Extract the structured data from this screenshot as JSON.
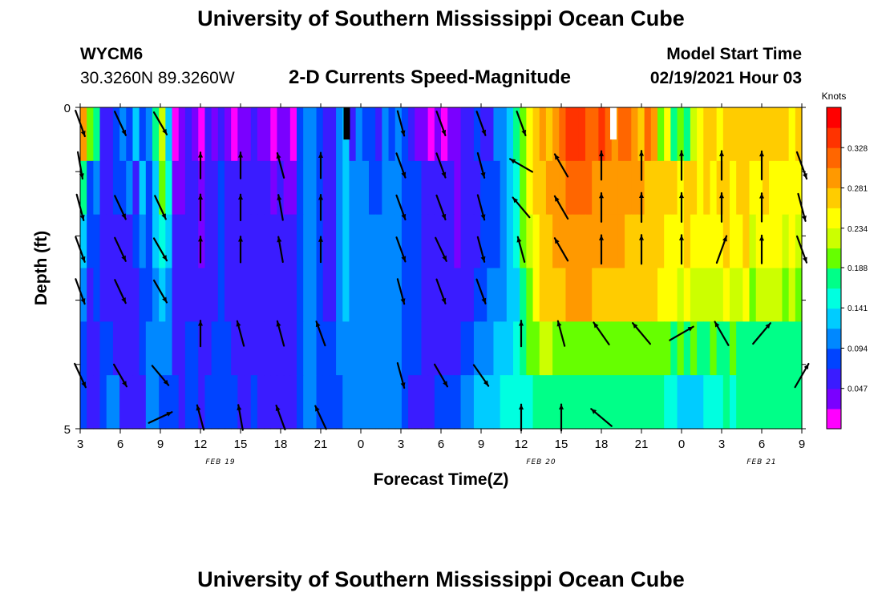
{
  "header": {
    "title": "University of Southern Mississippi Ocean Cube",
    "station": "WYCM6",
    "coords": "30.3260N 89.3260W",
    "subtitle": "2-D Currents Speed-Magnitude",
    "model_start_label": "Model Start Time",
    "model_start_value": "02/19/2021 Hour 03"
  },
  "footer": {
    "title": "University of Southern Mississippi Ocean Cube"
  },
  "colors": {
    "colormap": [
      "#ff00ff",
      "#7a00ff",
      "#3a1cff",
      "#0044ff",
      "#0088ff",
      "#00ccff",
      "#00ffe0",
      "#00ff88",
      "#66ff00",
      "#ccff00",
      "#ffff00",
      "#ffcc00",
      "#ff9900",
      "#ff6600",
      "#ff3300",
      "#ff0000"
    ],
    "arrow": "#000000",
    "background": "#ffffff"
  },
  "chart_data": {
    "type": "heatmap",
    "title": "2-D Currents Speed-Magnitude",
    "xlabel": "Forecast Time(Z)",
    "ylabel": "Depth (ft)",
    "x_ticks": [
      "3",
      "6",
      "9",
      "12",
      "15",
      "18",
      "21",
      "0",
      "3",
      "6",
      "9",
      "12",
      "15",
      "18",
      "21",
      "0",
      "3",
      "6",
      "9"
    ],
    "date_labels": [
      {
        "label": "FEB 19",
        "at_tick": 3.5
      },
      {
        "label": "FEB 20",
        "at_tick": 11.5
      },
      {
        "label": "FEB 21",
        "at_tick": 17
      }
    ],
    "y_ticks": [
      "0",
      "5"
    ],
    "ylim": [
      0,
      5
    ],
    "colorbar": {
      "label": "Knots",
      "ticks": [
        "0.047",
        "0.094",
        "0.141",
        "0.188",
        "0.234",
        "0.281",
        "0.328"
      ],
      "range": [
        0,
        0.375
      ]
    },
    "speed_at_depth_rows": [
      [
        0.29,
        0.21,
        0.17,
        0.07,
        0.06,
        0.09,
        0.1,
        0.08,
        0.13,
        0.08,
        0.1,
        0.17,
        0.22,
        0.12,
        0.01,
        0.03,
        0.06,
        0.04,
        0.02,
        0.05,
        0.04,
        0.06,
        0.03,
        0.02,
        0.04,
        0.03,
        0.07,
        0.04,
        0.03,
        0.02,
        0.03,
        0.03,
        0.02,
        0.09,
        0.11,
        0.1,
        0.08,
        0.06,
        0.07,
        0.1,
        0.14,
        0.07,
        0.11,
        0.09,
        0.08,
        0.07,
        0.1,
        0.09,
        0.1,
        0.08,
        0.05,
        0.04,
        0.03,
        0.02,
        0.03,
        0.01,
        0.03,
        0.04,
        0.06,
        0.05,
        0.08,
        0.06,
        0.07,
        0.1,
        0.11,
        0.14,
        0.17,
        0.2,
        0.24,
        0.26,
        0.29,
        0.28,
        0.29,
        0.32,
        0.33,
        0.34,
        0.34,
        0.32,
        0.32,
        0.33,
        0.32,
        0.3,
        0.31,
        0.32,
        0.3,
        0.28,
        0.31,
        0.29,
        0.2,
        0.24,
        0.18,
        0.2,
        0.18,
        0.22,
        0.25,
        0.27,
        0.26,
        0.25,
        0.26,
        0.26,
        0.27,
        0.26,
        0.27,
        0.26,
        0.26,
        0.27,
        0.26,
        0.26,
        0.25,
        0.26
      ],
      [
        0.17,
        0.09,
        0.11,
        0.06,
        0.07,
        0.08,
        0.08,
        0.1,
        0.07,
        0.12,
        0.09,
        0.14,
        0.19,
        0.15,
        0.04,
        0.04,
        0.06,
        0.05,
        0.03,
        0.06,
        0.07,
        0.09,
        0.06,
        0.05,
        0.06,
        0.05,
        0.05,
        0.05,
        0.06,
        0.04,
        0.06,
        0.04,
        0.04,
        0.09,
        0.1,
        0.1,
        0.09,
        0.07,
        0.06,
        0.11,
        0.13,
        0.1,
        0.11,
        0.1,
        0.09,
        0.09,
        0.1,
        0.1,
        0.1,
        0.09,
        0.09,
        0.08,
        0.07,
        0.06,
        0.06,
        0.05,
        0.05,
        0.04,
        0.05,
        0.06,
        0.07,
        0.08,
        0.08,
        0.08,
        0.1,
        0.13,
        0.16,
        0.2,
        0.24,
        0.26,
        0.28,
        0.29,
        0.3,
        0.3,
        0.31,
        0.31,
        0.31,
        0.31,
        0.3,
        0.3,
        0.3,
        0.3,
        0.3,
        0.29,
        0.29,
        0.29,
        0.28,
        0.28,
        0.27,
        0.26,
        0.26,
        0.25,
        0.27,
        0.26,
        0.25,
        0.26,
        0.25,
        0.26,
        0.27,
        0.25,
        0.26,
        0.27,
        0.24,
        0.25,
        0.26,
        0.25,
        0.25,
        0.24,
        0.25,
        0.24
      ],
      [
        0.12,
        0.08,
        0.09,
        0.07,
        0.06,
        0.07,
        0.07,
        0.06,
        0.08,
        0.1,
        0.09,
        0.12,
        0.15,
        0.13,
        0.05,
        0.05,
        0.07,
        0.06,
        0.04,
        0.06,
        0.07,
        0.09,
        0.07,
        0.06,
        0.07,
        0.06,
        0.06,
        0.06,
        0.07,
        0.05,
        0.06,
        0.05,
        0.05,
        0.09,
        0.1,
        0.1,
        0.09,
        0.07,
        0.06,
        0.11,
        0.13,
        0.1,
        0.11,
        0.1,
        0.1,
        0.1,
        0.1,
        0.1,
        0.1,
        0.09,
        0.09,
        0.08,
        0.07,
        0.06,
        0.06,
        0.05,
        0.05,
        0.04,
        0.05,
        0.06,
        0.07,
        0.08,
        0.09,
        0.09,
        0.1,
        0.12,
        0.15,
        0.19,
        0.23,
        0.25,
        0.27,
        0.28,
        0.29,
        0.29,
        0.3,
        0.3,
        0.3,
        0.3,
        0.29,
        0.29,
        0.29,
        0.29,
        0.29,
        0.28,
        0.28,
        0.28,
        0.27,
        0.27,
        0.26,
        0.25,
        0.25,
        0.24,
        0.26,
        0.25,
        0.24,
        0.25,
        0.24,
        0.25,
        0.26,
        0.24,
        0.25,
        0.26,
        0.23,
        0.24,
        0.25,
        0.24,
        0.24,
        0.23,
        0.24,
        0.23
      ],
      [
        0.1,
        0.07,
        0.08,
        0.07,
        0.06,
        0.06,
        0.06,
        0.05,
        0.07,
        0.09,
        0.09,
        0.11,
        0.13,
        0.11,
        0.06,
        0.05,
        0.07,
        0.07,
        0.05,
        0.06,
        0.07,
        0.09,
        0.07,
        0.06,
        0.07,
        0.07,
        0.06,
        0.07,
        0.07,
        0.05,
        0.06,
        0.05,
        0.05,
        0.09,
        0.1,
        0.1,
        0.09,
        0.07,
        0.07,
        0.1,
        0.12,
        0.1,
        0.1,
        0.1,
        0.1,
        0.1,
        0.1,
        0.1,
        0.1,
        0.09,
        0.08,
        0.08,
        0.07,
        0.06,
        0.06,
        0.05,
        0.06,
        0.05,
        0.06,
        0.07,
        0.08,
        0.09,
        0.1,
        0.1,
        0.11,
        0.12,
        0.14,
        0.18,
        0.21,
        0.24,
        0.26,
        0.27,
        0.28,
        0.28,
        0.29,
        0.29,
        0.29,
        0.29,
        0.28,
        0.28,
        0.28,
        0.28,
        0.28,
        0.27,
        0.27,
        0.27,
        0.26,
        0.26,
        0.25,
        0.24,
        0.24,
        0.23,
        0.24,
        0.23,
        0.22,
        0.23,
        0.22,
        0.23,
        0.24,
        0.22,
        0.23,
        0.24,
        0.21,
        0.22,
        0.23,
        0.22,
        0.22,
        0.21,
        0.22,
        0.21
      ],
      [
        0.09,
        0.07,
        0.07,
        0.08,
        0.08,
        0.07,
        0.06,
        0.06,
        0.07,
        0.08,
        0.1,
        0.1,
        0.11,
        0.1,
        0.07,
        0.06,
        0.08,
        0.08,
        0.06,
        0.07,
        0.08,
        0.09,
        0.08,
        0.07,
        0.07,
        0.07,
        0.07,
        0.07,
        0.07,
        0.06,
        0.06,
        0.06,
        0.06,
        0.09,
        0.1,
        0.1,
        0.09,
        0.08,
        0.08,
        0.1,
        0.11,
        0.1,
        0.1,
        0.1,
        0.1,
        0.1,
        0.1,
        0.1,
        0.1,
        0.09,
        0.08,
        0.08,
        0.07,
        0.07,
        0.07,
        0.06,
        0.07,
        0.07,
        0.08,
        0.09,
        0.1,
        0.11,
        0.11,
        0.12,
        0.13,
        0.13,
        0.15,
        0.17,
        0.19,
        0.21,
        0.22,
        0.22,
        0.21,
        0.21,
        0.21,
        0.21,
        0.21,
        0.2,
        0.2,
        0.2,
        0.21,
        0.2,
        0.2,
        0.2,
        0.19,
        0.2,
        0.2,
        0.19,
        0.19,
        0.19,
        0.18,
        0.19,
        0.18,
        0.19,
        0.18,
        0.18,
        0.19,
        0.18,
        0.18,
        0.19,
        0.18,
        0.17,
        0.18,
        0.18,
        0.18,
        0.18,
        0.17,
        0.18,
        0.17,
        0.18
      ],
      [
        0.08,
        0.07,
        0.06,
        0.09,
        0.1,
        0.11,
        0.05,
        0.05,
        0.06,
        0.07,
        0.11,
        0.1,
        0.09,
        0.09,
        0.09,
        0.07,
        0.09,
        0.09,
        0.07,
        0.08,
        0.09,
        0.09,
        0.09,
        0.08,
        0.07,
        0.07,
        0.08,
        0.07,
        0.07,
        0.07,
        0.06,
        0.07,
        0.07,
        0.09,
        0.1,
        0.1,
        0.09,
        0.09,
        0.09,
        0.09,
        0.1,
        0.1,
        0.1,
        0.1,
        0.1,
        0.1,
        0.1,
        0.1,
        0.1,
        0.08,
        0.07,
        0.07,
        0.07,
        0.07,
        0.08,
        0.08,
        0.09,
        0.09,
        0.1,
        0.11,
        0.12,
        0.13,
        0.13,
        0.14,
        0.15,
        0.15,
        0.16,
        0.16,
        0.16,
        0.17,
        0.17,
        0.17,
        0.17,
        0.18,
        0.18,
        0.18,
        0.18,
        0.18,
        0.18,
        0.18,
        0.18,
        0.18,
        0.18,
        0.17,
        0.17,
        0.17,
        0.17,
        0.18,
        0.18,
        0.16,
        0.15,
        0.14,
        0.14,
        0.13,
        0.14,
        0.15,
        0.16,
        0.16,
        0.17,
        0.16,
        0.17,
        0.17,
        0.18,
        0.18,
        0.18,
        0.18,
        0.17,
        0.17,
        0.18,
        0.17
      ]
    ],
    "arrow_columns_at_tick": [
      0,
      1,
      2,
      3,
      4,
      5,
      6,
      7,
      8,
      9,
      10,
      11,
      12,
      13,
      14,
      15,
      16,
      17,
      18
    ],
    "arrow_direction_deg_rows": [
      [
        160,
        155,
        150,
        null,
        null,
        null,
        null,
        null,
        165,
        160,
        160,
        160,
        null,
        null,
        null,
        null,
        null,
        null,
        null
      ],
      [
        170,
        null,
        null,
        0,
        0,
        345,
        0,
        null,
        160,
        160,
        165,
        300,
        330,
        0,
        0,
        0,
        0,
        0,
        160
      ],
      [
        165,
        155,
        155,
        0,
        0,
        350,
        0,
        null,
        160,
        160,
        165,
        320,
        330,
        0,
        0,
        0,
        0,
        0,
        165
      ],
      [
        160,
        155,
        150,
        0,
        0,
        350,
        0,
        null,
        160,
        155,
        165,
        345,
        330,
        0,
        0,
        0,
        20,
        0,
        160
      ],
      [
        160,
        155,
        150,
        null,
        null,
        null,
        null,
        null,
        165,
        160,
        160,
        null,
        null,
        null,
        null,
        null,
        null,
        null,
        null
      ],
      [
        null,
        null,
        null,
        0,
        345,
        345,
        340,
        null,
        null,
        null,
        null,
        0,
        345,
        325,
        320,
        60,
        330,
        40,
        null
      ],
      [
        155,
        150,
        140,
        null,
        null,
        null,
        null,
        null,
        165,
        150,
        145,
        null,
        null,
        null,
        null,
        null,
        null,
        null,
        30
      ],
      [
        null,
        null,
        65,
        345,
        350,
        340,
        335,
        null,
        null,
        null,
        null,
        0,
        0,
        310,
        null,
        null,
        null,
        null,
        null
      ]
    ],
    "arrow_speed_rows": [
      [
        0.2,
        0.13,
        0.1,
        null,
        null,
        null,
        null,
        null,
        0.09,
        0.08,
        0.07,
        0.08,
        null,
        null,
        null,
        null,
        null,
        null,
        null
      ],
      [
        0.18,
        null,
        null,
        0.12,
        0.12,
        0.09,
        0.08,
        null,
        0.1,
        0.1,
        0.09,
        0.1,
        0.11,
        0.28,
        0.32,
        0.31,
        0.29,
        0.26,
        0.26
      ],
      [
        0.16,
        0.1,
        0.1,
        0.12,
        0.11,
        0.09,
        0.08,
        null,
        0.1,
        0.1,
        0.09,
        0.11,
        0.12,
        0.29,
        0.31,
        0.3,
        0.29,
        0.26,
        0.25
      ],
      [
        0.15,
        0.1,
        0.1,
        0.12,
        0.11,
        0.09,
        0.08,
        null,
        0.1,
        0.1,
        0.1,
        0.11,
        0.12,
        0.28,
        0.3,
        0.29,
        0.28,
        0.24,
        0.24
      ],
      [
        0.14,
        0.09,
        0.09,
        null,
        null,
        null,
        null,
        null,
        0.1,
        0.1,
        0.1,
        null,
        null,
        null,
        null,
        null,
        null,
        null,
        null
      ],
      [
        null,
        null,
        null,
        0.1,
        0.1,
        0.09,
        0.09,
        null,
        null,
        null,
        null,
        0.1,
        0.11,
        0.17,
        0.2,
        0.19,
        0.19,
        0.18,
        null
      ],
      [
        0.12,
        0.08,
        0.08,
        null,
        null,
        null,
        null,
        null,
        0.1,
        0.09,
        0.09,
        null,
        null,
        null,
        null,
        null,
        null,
        null,
        0.18
      ],
      [
        null,
        null,
        0.09,
        0.09,
        0.09,
        0.09,
        0.09,
        null,
        null,
        null,
        null,
        0.13,
        0.14,
        0.16,
        null,
        null,
        null,
        null,
        null
      ]
    ],
    "markers": [
      {
        "at_tick": 6.65,
        "depth_to": 0.5,
        "color": "#000000"
      },
      {
        "at_tick": 13.3,
        "depth_to": 0.5,
        "color": "#ffffff"
      }
    ]
  }
}
